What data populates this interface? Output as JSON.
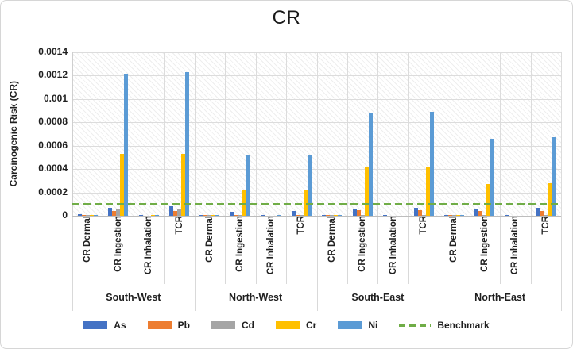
{
  "chart_data": {
    "type": "bar",
    "title": "CR",
    "ylabel": "Carcinogenic Risk (CR)",
    "xlabel": "",
    "ylim": [
      0,
      0.0014
    ],
    "ytick_labels": [
      "0",
      "0.0002",
      "0.0004",
      "0.0006",
      "0.0008",
      "0.001",
      "0.0012",
      "0.0014"
    ],
    "grid": true,
    "legend_position": "bottom",
    "plot_background": "diagonal-hatch",
    "groups": [
      "South-West",
      "North-West",
      "South-East",
      "North-East"
    ],
    "categories_per_group": [
      "CR Dermal",
      "CR Ingestion",
      "CR Inhalation",
      "TCR"
    ],
    "series": [
      {
        "name": "As",
        "color": "#4472C4",
        "values": [
          1.3e-05,
          7e-05,
          1e-06,
          8e-05,
          7e-06,
          3.5e-05,
          2e-06,
          4e-05,
          1e-05,
          6e-05,
          5e-06,
          7e-05,
          8e-06,
          6e-05,
          1e-05,
          7e-05
        ]
      },
      {
        "name": "Pb",
        "color": "#ED7D31",
        "values": [
          2e-06,
          4e-05,
          0,
          4e-05,
          1e-06,
          1e-05,
          0,
          1e-05,
          1e-06,
          5e-05,
          0,
          5e-05,
          1e-06,
          4e-05,
          0,
          4e-05
        ]
      },
      {
        "name": "Cd",
        "color": "#A5A5A5",
        "values": [
          3e-06,
          6e-05,
          0,
          6e-05,
          1e-06,
          5e-06,
          0,
          5e-06,
          2e-06,
          1e-05,
          0,
          1e-05,
          1e-06,
          5e-06,
          0,
          5e-06
        ]
      },
      {
        "name": "Cr",
        "color": "#FFC000",
        "values": [
          5e-06,
          0.00053,
          1e-06,
          0.00053,
          2e-06,
          0.00022,
          0,
          0.00022,
          3e-06,
          0.00042,
          0,
          0.00042,
          2e-06,
          0.00027,
          0,
          0.00028
        ]
      },
      {
        "name": "Ni",
        "color": "#5B9BD5",
        "values": [
          1e-05,
          0.00122,
          2e-06,
          0.00123,
          4e-06,
          0.00052,
          1e-06,
          0.00052,
          8e-06,
          0.00088,
          0,
          0.00089,
          4e-06,
          0.00066,
          0,
          0.00067
        ]
      }
    ],
    "benchmark": {
      "label": "Benchmark",
      "value": 0.0001,
      "color": "#70AD47",
      "line_style": "dashed"
    }
  },
  "colors": {
    "gridline": "#dcdcdc",
    "axis_line": "#bdbdbd",
    "text": "#1f1f1f",
    "figure_border": "#d6d6d6"
  }
}
